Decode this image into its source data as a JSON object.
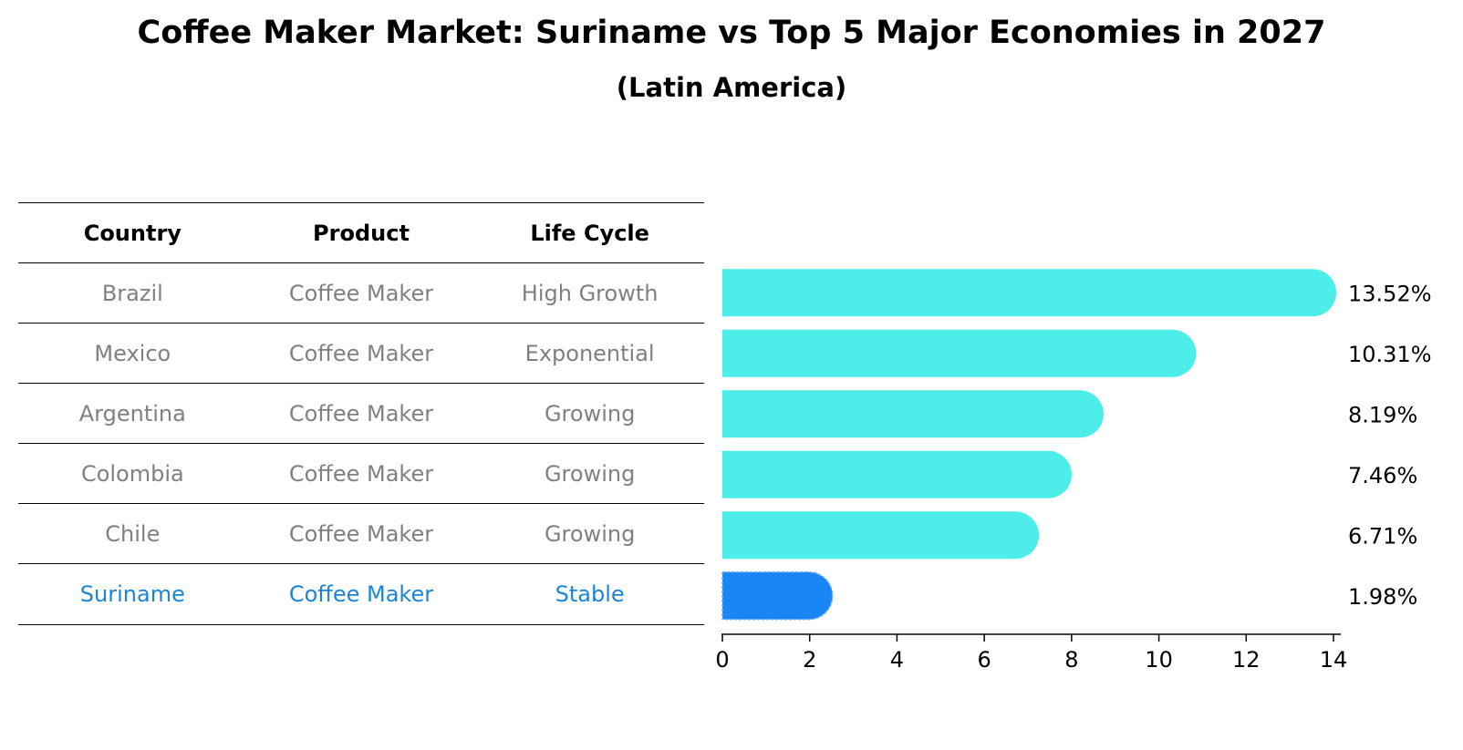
{
  "title": "Coffee Maker Market: Suriname vs Top 5 Major Economies in 2027",
  "subtitle": "(Latin America)",
  "table": {
    "headers": [
      "Country",
      "Product",
      "Life Cycle"
    ],
    "rows": [
      {
        "country": "Brazil",
        "product": "Coffee Maker",
        "life_cycle": "High Growth"
      },
      {
        "country": "Mexico",
        "product": "Coffee Maker",
        "life_cycle": "Exponential"
      },
      {
        "country": "Argentina",
        "product": "Coffee Maker",
        "life_cycle": "Growing"
      },
      {
        "country": "Colombia",
        "product": "Coffee Maker",
        "life_cycle": "Growing"
      },
      {
        "country": "Chile",
        "product": "Coffee Maker",
        "life_cycle": "Growing"
      },
      {
        "country": "Suriname",
        "product": "Coffee Maker",
        "life_cycle": "Stable"
      }
    ]
  },
  "colors": {
    "bar": "#4deeea",
    "highlight": "#1a85f5",
    "muted_text": "#808080",
    "highlight_text": "#1a85d6"
  },
  "chart_data": {
    "type": "bar",
    "orientation": "horizontal",
    "title": "Coffee Maker Market: Suriname vs Top 5 Major Economies in 2027",
    "subtitle": "(Latin America)",
    "categories": [
      "Brazil",
      "Mexico",
      "Argentina",
      "Colombia",
      "Chile",
      "Suriname"
    ],
    "values": [
      13.52,
      10.31,
      8.19,
      7.46,
      6.71,
      1.98
    ],
    "labels": [
      "13.52%",
      "10.31%",
      "8.19%",
      "7.46%",
      "6.71%",
      "1.98%"
    ],
    "highlight_category": "Suriname",
    "xlim": [
      0,
      14
    ],
    "xticks": [
      0,
      2,
      4,
      6,
      8,
      10,
      12,
      14
    ],
    "xlabel": "",
    "ylabel": "",
    "grid": false
  }
}
